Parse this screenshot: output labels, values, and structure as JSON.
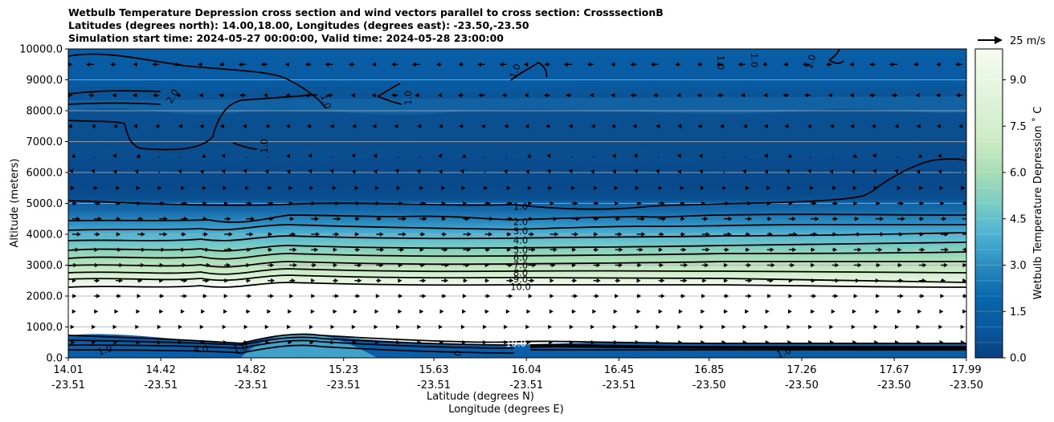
{
  "chart_data": {
    "type": "contour",
    "title": [
      "Wetbulb Temperature Depression cross section and wind vectors parallel to cross section: CrosssectionB",
      "Latitudes (degrees north): 14.00,18.00, Longitudes (degrees east): -23.50,-23.50",
      "Simulation start time: 2024-05-27 00:00:00, Valid time: 2024-05-28 23:00:00"
    ],
    "ylabel": "Altitude (meters)",
    "xlabel_lat": "Latitude (degrees N)",
    "xlabel_lon": "Longitude (degrees E)",
    "colorbar_label": "Wetbulb Temperature Depression ˚ C",
    "quiver_key": "25 m/s",
    "x_ticks": [
      {
        "lat": "14.01",
        "lon": "-23.51"
      },
      {
        "lat": "14.42",
        "lon": "-23.51"
      },
      {
        "lat": "14.82",
        "lon": "-23.51"
      },
      {
        "lat": "15.23",
        "lon": "-23.51"
      },
      {
        "lat": "15.63",
        "lon": "-23.51"
      },
      {
        "lat": "16.04",
        "lon": "-23.51"
      },
      {
        "lat": "16.45",
        "lon": "-23.51"
      },
      {
        "lat": "16.85",
        "lon": "-23.50"
      },
      {
        "lat": "17.26",
        "lon": "-23.50"
      },
      {
        "lat": "17.67",
        "lon": "-23.50"
      },
      {
        "lat": "17.99",
        "lon": "-23.50"
      }
    ],
    "y_ticks": [
      "0.0",
      "1000.0",
      "2000.0",
      "3000.0",
      "4000.0",
      "5000.0",
      "6000.0",
      "7000.0",
      "8000.0",
      "9000.0",
      "10000.0"
    ],
    "ylim": [
      0,
      10000
    ],
    "colorbar_ticks": [
      "0.0",
      "1.5",
      "3.0",
      "4.5",
      "6.0",
      "7.5",
      "9.0"
    ],
    "colorbar_range": [
      0,
      10
    ],
    "contour_levels": [
      {
        "label": "1.0",
        "value": 1,
        "altitude": 4900
      },
      {
        "label": "2.0",
        "value": 2,
        "altitude": 4400
      },
      {
        "label": "3.0",
        "value": 3,
        "altitude": 4100
      },
      {
        "label": "4.0",
        "value": 4,
        "altitude": 3800
      },
      {
        "label": "5.0",
        "value": 5,
        "altitude": 3500
      },
      {
        "label": "6.0",
        "value": 6,
        "altitude": 3250
      },
      {
        "label": "7.0",
        "value": 7,
        "altitude": 3000
      },
      {
        "label": "8.0",
        "value": 8,
        "altitude": 2750
      },
      {
        "label": "9.0",
        "value": 9,
        "altitude": 2550
      },
      {
        "label": "10.0",
        "value": 10,
        "altitude": 2300
      }
    ],
    "upper_contours": [
      {
        "label": "2.0",
        "value": 2
      },
      {
        "label": "1.0",
        "value": 1
      },
      {
        "label": "1.0",
        "value": 1
      },
      {
        "label": "1.0",
        "value": 1
      },
      {
        "label": "1.0",
        "value": 1
      },
      {
        "label": "1.0",
        "value": 1
      },
      {
        "label": "1.0",
        "value": 1
      },
      {
        "label": "1.0",
        "value": 1
      }
    ],
    "surface_labels": [
      "1.0",
      "1.0",
      "4.0",
      "0",
      "1.0",
      "10.0"
    ],
    "wind_rows": [
      {
        "altitude": 9500,
        "direction": "west",
        "strength": 0.55
      },
      {
        "altitude": 8500,
        "direction": "west",
        "strength": 0.45
      },
      {
        "altitude": 7500,
        "direction": "west",
        "strength": 0.3
      },
      {
        "altitude": 6500,
        "direction": "mixed",
        "strength": 0.15
      },
      {
        "altitude": 6000,
        "direction": "south",
        "strength": 0.2
      },
      {
        "altitude": 5500,
        "direction": "east",
        "strength": 0.3
      },
      {
        "altitude": 5000,
        "direction": "east",
        "strength": 0.45
      },
      {
        "altitude": 4500,
        "direction": "east",
        "strength": 0.6
      },
      {
        "altitude": 4000,
        "direction": "east",
        "strength": 0.6
      },
      {
        "altitude": 3500,
        "direction": "east",
        "strength": 0.55
      },
      {
        "altitude": 3000,
        "direction": "east",
        "strength": 0.55
      },
      {
        "altitude": 2500,
        "direction": "east",
        "strength": 0.5
      },
      {
        "altitude": 2000,
        "direction": "east",
        "strength": 0.45
      },
      {
        "altitude": 1500,
        "direction": "east",
        "strength": 0.3
      },
      {
        "altitude": 1000,
        "direction": "east",
        "strength": 0.15
      },
      {
        "altitude": 500,
        "direction": "east",
        "strength": 0.2
      }
    ]
  }
}
